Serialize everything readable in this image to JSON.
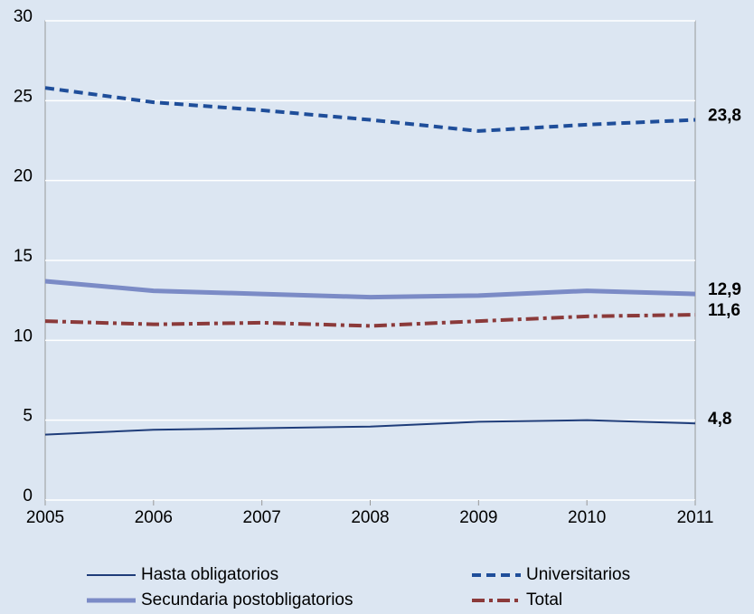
{
  "chart_data": {
    "type": "line",
    "categories": [
      "2005",
      "2006",
      "2007",
      "2008",
      "2009",
      "2010",
      "2011"
    ],
    "ylim": [
      0,
      30
    ],
    "yticks": [
      0,
      5,
      10,
      15,
      20,
      25,
      30
    ],
    "grid": true,
    "legend": "bottom",
    "series": [
      {
        "name": "Hasta obligatorios",
        "color": "#1f3d7a",
        "style": "solid",
        "width": 2,
        "values": [
          4.1,
          4.4,
          4.5,
          4.6,
          4.9,
          5.0,
          4.8
        ],
        "value_labels": [
          null,
          null,
          null,
          null,
          null,
          null,
          "4,8"
        ]
      },
      {
        "name": "Universitarios",
        "color": "#1f4e9a",
        "style": "dashed",
        "width": 4,
        "values": [
          25.8,
          24.9,
          24.4,
          23.8,
          23.1,
          23.5,
          23.8
        ],
        "value_labels": [
          null,
          null,
          null,
          null,
          null,
          null,
          "23,8"
        ]
      },
      {
        "name": "Secundaria postobligatorios",
        "color": "#7b8bc6",
        "style": "solid",
        "width": 5,
        "values": [
          13.7,
          13.1,
          12.9,
          12.7,
          12.8,
          13.1,
          12.9
        ],
        "value_labels": [
          null,
          null,
          null,
          null,
          null,
          null,
          "12,9"
        ]
      },
      {
        "name": "Total",
        "color": "#8b3a3a",
        "style": "dashdot",
        "width": 4,
        "values": [
          11.2,
          11.0,
          11.1,
          10.9,
          11.2,
          11.5,
          11.6
        ],
        "value_labels": [
          null,
          null,
          null,
          null,
          null,
          null,
          "11,6"
        ]
      }
    ]
  }
}
